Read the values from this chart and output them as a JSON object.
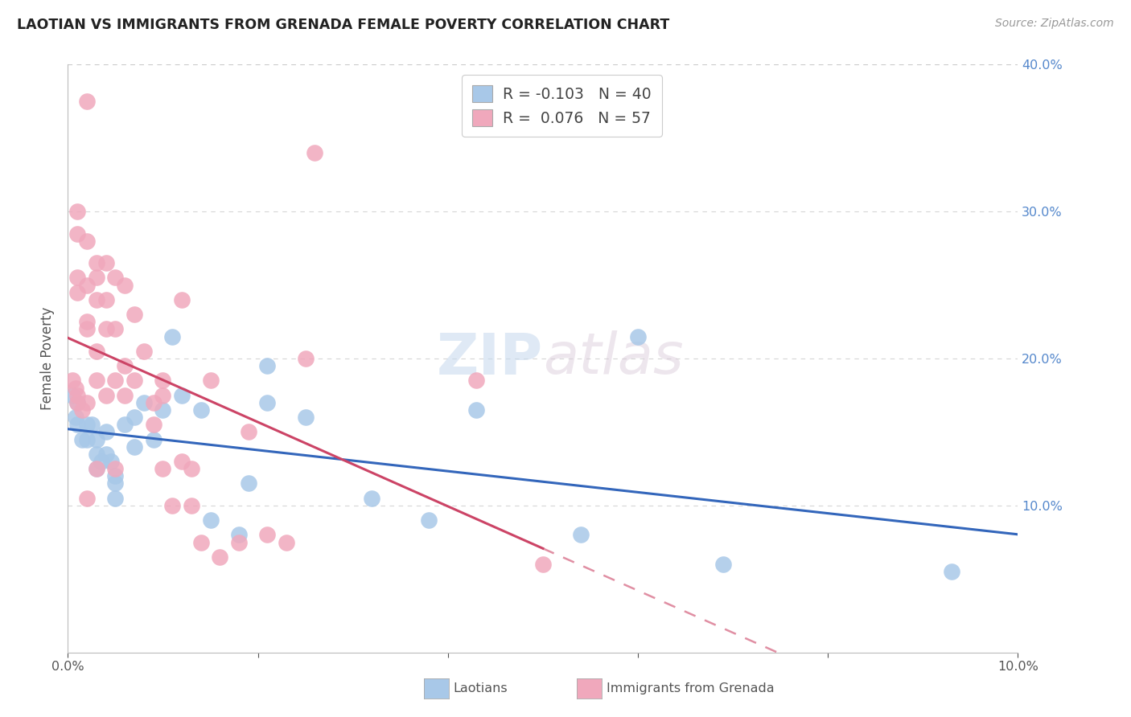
{
  "title": "LAOTIAN VS IMMIGRANTS FROM GRENADA FEMALE POVERTY CORRELATION CHART",
  "source": "Source: ZipAtlas.com",
  "ylabel": "Female Poverty",
  "xlim": [
    0,
    0.1
  ],
  "ylim": [
    0,
    0.4
  ],
  "blue_R": "-0.103",
  "blue_N": "40",
  "pink_R": "0.076",
  "pink_N": "57",
  "blue_color": "#a8c8e8",
  "pink_color": "#f0a8bc",
  "blue_line_color": "#3366bb",
  "pink_line_color": "#cc4466",
  "watermark_text": "ZIPatlas",
  "legend_label_blue": "Laotians",
  "legend_label_pink": "Immigrants from Grenada",
  "blue_x": [
    0.0005,
    0.0008,
    0.001,
    0.001,
    0.0015,
    0.002,
    0.002,
    0.0025,
    0.003,
    0.003,
    0.003,
    0.0035,
    0.004,
    0.004,
    0.0045,
    0.005,
    0.005,
    0.005,
    0.006,
    0.007,
    0.007,
    0.008,
    0.009,
    0.01,
    0.011,
    0.012,
    0.014,
    0.015,
    0.018,
    0.019,
    0.021,
    0.021,
    0.025,
    0.032,
    0.038,
    0.043,
    0.054,
    0.06,
    0.069,
    0.093
  ],
  "blue_y": [
    0.175,
    0.16,
    0.17,
    0.155,
    0.145,
    0.155,
    0.145,
    0.155,
    0.145,
    0.135,
    0.125,
    0.13,
    0.15,
    0.135,
    0.13,
    0.12,
    0.115,
    0.105,
    0.155,
    0.16,
    0.14,
    0.17,
    0.145,
    0.165,
    0.215,
    0.175,
    0.165,
    0.09,
    0.08,
    0.115,
    0.195,
    0.17,
    0.16,
    0.105,
    0.09,
    0.165,
    0.08,
    0.215,
    0.06,
    0.055
  ],
  "pink_x": [
    0.0005,
    0.0008,
    0.001,
    0.001,
    0.001,
    0.001,
    0.001,
    0.001,
    0.0015,
    0.002,
    0.002,
    0.002,
    0.002,
    0.002,
    0.002,
    0.002,
    0.003,
    0.003,
    0.003,
    0.003,
    0.003,
    0.003,
    0.004,
    0.004,
    0.004,
    0.004,
    0.005,
    0.005,
    0.005,
    0.005,
    0.006,
    0.006,
    0.006,
    0.007,
    0.007,
    0.008,
    0.009,
    0.009,
    0.01,
    0.01,
    0.01,
    0.011,
    0.012,
    0.012,
    0.013,
    0.013,
    0.014,
    0.015,
    0.016,
    0.018,
    0.019,
    0.021,
    0.023,
    0.025,
    0.026,
    0.043,
    0.05
  ],
  "pink_y": [
    0.185,
    0.18,
    0.3,
    0.285,
    0.255,
    0.245,
    0.175,
    0.17,
    0.165,
    0.375,
    0.28,
    0.25,
    0.225,
    0.22,
    0.17,
    0.105,
    0.265,
    0.255,
    0.24,
    0.205,
    0.185,
    0.125,
    0.265,
    0.24,
    0.22,
    0.175,
    0.255,
    0.22,
    0.185,
    0.125,
    0.25,
    0.195,
    0.175,
    0.23,
    0.185,
    0.205,
    0.17,
    0.155,
    0.185,
    0.175,
    0.125,
    0.1,
    0.24,
    0.13,
    0.125,
    0.1,
    0.075,
    0.185,
    0.065,
    0.075,
    0.15,
    0.08,
    0.075,
    0.2,
    0.34,
    0.185,
    0.06
  ],
  "background_color": "#ffffff",
  "grid_color": "#cccccc"
}
